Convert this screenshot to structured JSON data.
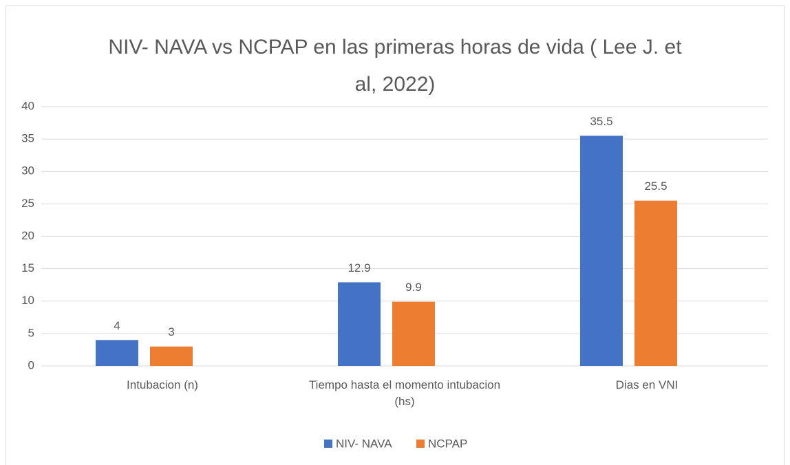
{
  "chart_data": {
    "type": "bar",
    "title": "NIV- NAVA vs NCPAP en las primeras horas de vida ( Lee J. et al, 2022)",
    "categories": [
      "Intubacion (n)",
      "Tiempo hasta el momento intubacion (hs)",
      "Dias en VNI"
    ],
    "series": [
      {
        "name": "NIV- NAVA",
        "color": "#4472c4",
        "values": [
          4,
          12.9,
          35.5
        ]
      },
      {
        "name": "NCPAP",
        "color": "#ed7d31",
        "values": [
          3,
          9.9,
          25.5
        ]
      }
    ],
    "ylim": [
      0,
      40
    ],
    "yticks": [
      0,
      5,
      10,
      15,
      20,
      25,
      30,
      35,
      40
    ],
    "grid": true,
    "legend": "bottom"
  }
}
